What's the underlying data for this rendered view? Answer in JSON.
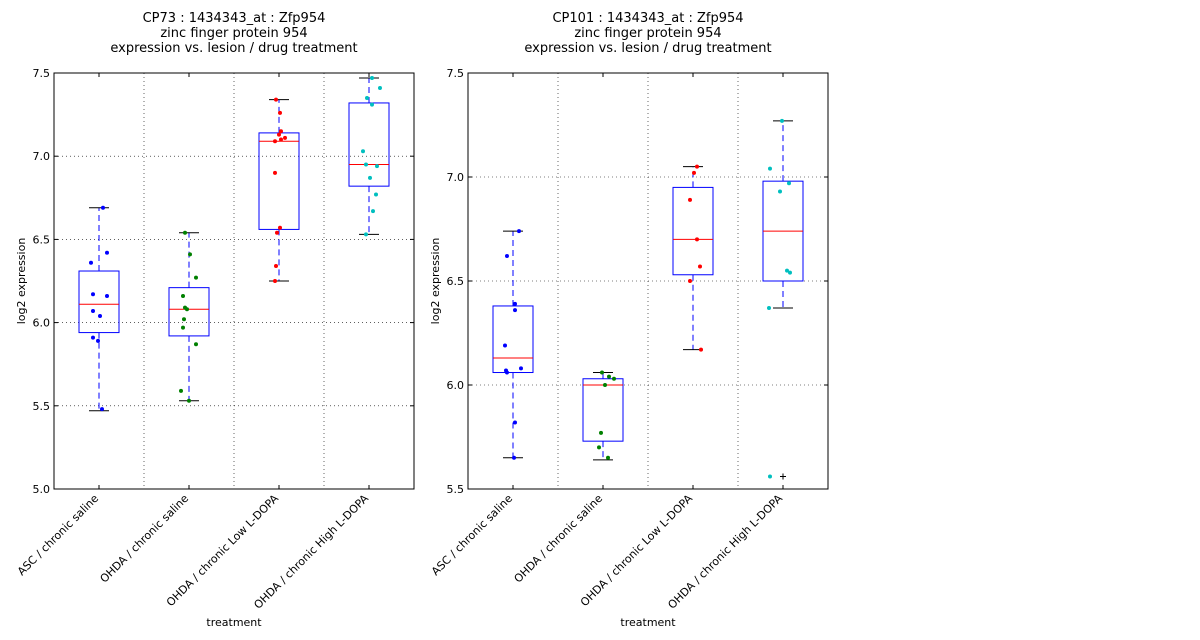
{
  "chart_data": [
    {
      "type": "box",
      "title_lines": [
        "CP73 : 1434343_at : Zfp954",
        "zinc finger protein 954",
        "expression vs. lesion / drug treatment"
      ],
      "xlabel": "treatment",
      "ylabel": "log2 expression",
      "ylim": [
        5.0,
        7.5
      ],
      "yticks": [
        "5.0",
        "5.5",
        "6.0",
        "6.5",
        "7.0",
        "7.5"
      ],
      "grid": true,
      "categories": [
        "ASC / chronic saline",
        "OHDA / chronic saline",
        "OHDA / chronic Low L-DOPA",
        "OHDA / chronic High L-DOPA"
      ],
      "boxes": [
        {
          "whisker_low": 5.47,
          "q1": 5.94,
          "median": 6.11,
          "q3": 6.31,
          "whisker_high": 6.69,
          "outliers": []
        },
        {
          "whisker_low": 5.53,
          "q1": 5.92,
          "median": 6.08,
          "q3": 6.21,
          "whisker_high": 6.54,
          "outliers": []
        },
        {
          "whisker_low": 6.25,
          "q1": 6.56,
          "median": 7.09,
          "q3": 7.14,
          "whisker_high": 7.34,
          "outliers": []
        },
        {
          "whisker_low": 6.53,
          "q1": 6.82,
          "median": 6.95,
          "q3": 7.32,
          "whisker_high": 7.47,
          "outliers": []
        }
      ],
      "points": [
        {
          "color": "#0000ff",
          "values": [
            6.69,
            6.42,
            6.36,
            6.17,
            6.16,
            6.07,
            6.04,
            5.91,
            5.89,
            5.48
          ]
        },
        {
          "color": "#008000",
          "values": [
            6.54,
            6.41,
            6.27,
            6.16,
            6.09,
            6.08,
            6.02,
            5.97,
            5.87,
            5.59,
            5.53
          ]
        },
        {
          "color": "#ff0000",
          "values": [
            7.34,
            7.26,
            7.15,
            7.13,
            7.11,
            7.1,
            7.09,
            6.9,
            6.57,
            6.54,
            6.34,
            6.25
          ]
        },
        {
          "color": "#00bfbf",
          "values": [
            7.47,
            7.41,
            7.35,
            7.31,
            7.03,
            6.95,
            6.94,
            6.87,
            6.77,
            6.67,
            6.53
          ]
        }
      ]
    },
    {
      "type": "box",
      "title_lines": [
        "CP101 : 1434343_at : Zfp954",
        "zinc finger protein 954",
        "expression vs. lesion / drug treatment"
      ],
      "xlabel": "treatment",
      "ylabel": "log2 expression",
      "ylim": [
        5.5,
        7.5
      ],
      "yticks": [
        "5.5",
        "6.0",
        "6.5",
        "7.0",
        "7.5"
      ],
      "grid": true,
      "categories": [
        "ASC / chronic saline",
        "OHDA / chronic saline",
        "OHDA / chronic Low L-DOPA",
        "OHDA / chronic High L-DOPA"
      ],
      "boxes": [
        {
          "whisker_low": 5.65,
          "q1": 6.06,
          "median": 6.13,
          "q3": 6.38,
          "whisker_high": 6.74,
          "outliers": []
        },
        {
          "whisker_low": 5.64,
          "q1": 5.73,
          "median": 6.0,
          "q3": 6.03,
          "whisker_high": 6.06,
          "outliers": []
        },
        {
          "whisker_low": 6.17,
          "q1": 6.53,
          "median": 6.7,
          "q3": 6.95,
          "whisker_high": 7.05,
          "outliers": []
        },
        {
          "whisker_low": 6.37,
          "q1": 6.5,
          "median": 6.74,
          "q3": 6.98,
          "whisker_high": 7.27,
          "outliers": [
            5.56
          ]
        }
      ],
      "points": [
        {
          "color": "#0000ff",
          "values": [
            6.74,
            6.62,
            6.39,
            6.36,
            6.19,
            6.08,
            6.07,
            6.06,
            5.82,
            5.65
          ]
        },
        {
          "color": "#008000",
          "values": [
            6.06,
            6.04,
            6.03,
            6.0,
            5.77,
            5.7,
            5.65
          ]
        },
        {
          "color": "#ff0000",
          "values": [
            7.05,
            7.02,
            6.89,
            6.7,
            6.57,
            6.5,
            6.17
          ]
        },
        {
          "color": "#00bfbf",
          "values": [
            7.27,
            7.04,
            6.97,
            6.93,
            6.55,
            6.54,
            6.37,
            5.56
          ]
        }
      ]
    }
  ]
}
